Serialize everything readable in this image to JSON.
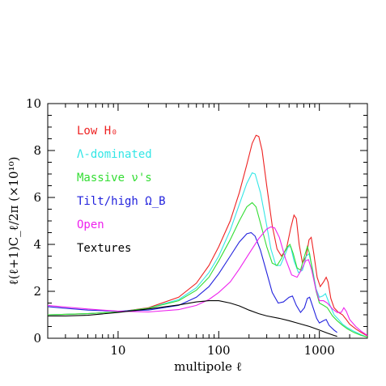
{
  "chart_data": {
    "type": "line",
    "xlabel": "multipole ℓ",
    "ylabel": "ℓ(ℓ+1)C_ℓ/2π (×10¹⁰)",
    "x_scale": "log",
    "xlim": [
      2,
      3000
    ],
    "ylim": [
      0,
      10
    ],
    "x_ticks": [
      10,
      100,
      1000
    ],
    "x_tick_labels": [
      "10",
      "100",
      "1000"
    ],
    "y_ticks": [
      0,
      2,
      4,
      6,
      8,
      10
    ],
    "y_tick_labels": [
      "0",
      "2",
      "4",
      "6",
      "8",
      "10"
    ],
    "grid": false,
    "legend_placement": "top-left",
    "series": [
      {
        "name": "Low H₀",
        "color": "#ee2222",
        "points": [
          [
            2,
            1.0
          ],
          [
            3,
            1.02
          ],
          [
            5,
            1.05
          ],
          [
            10,
            1.12
          ],
          [
            20,
            1.3
          ],
          [
            40,
            1.75
          ],
          [
            60,
            2.35
          ],
          [
            80,
            3.1
          ],
          [
            100,
            3.9
          ],
          [
            130,
            5.0
          ],
          [
            160,
            6.2
          ],
          [
            190,
            7.4
          ],
          [
            215,
            8.3
          ],
          [
            235,
            8.65
          ],
          [
            250,
            8.6
          ],
          [
            270,
            8.0
          ],
          [
            300,
            6.5
          ],
          [
            340,
            4.8
          ],
          [
            380,
            3.8
          ],
          [
            420,
            3.5
          ],
          [
            470,
            3.8
          ],
          [
            520,
            4.7
          ],
          [
            560,
            5.25
          ],
          [
            590,
            5.1
          ],
          [
            630,
            4.0
          ],
          [
            680,
            3.2
          ],
          [
            740,
            3.5
          ],
          [
            790,
            4.2
          ],
          [
            830,
            4.3
          ],
          [
            880,
            3.6
          ],
          [
            950,
            2.6
          ],
          [
            1020,
            2.2
          ],
          [
            1100,
            2.4
          ],
          [
            1170,
            2.6
          ],
          [
            1220,
            2.4
          ],
          [
            1300,
            1.7
          ],
          [
            1400,
            1.3
          ],
          [
            1550,
            1.1
          ],
          [
            1700,
            1.0
          ],
          [
            1850,
            0.8
          ],
          [
            2000,
            0.6
          ],
          [
            2300,
            0.4
          ],
          [
            2600,
            0.25
          ],
          [
            3000,
            0.1
          ]
        ]
      },
      {
        "name": "Λ-dominated",
        "color": "#33e6e6",
        "points": [
          [
            2,
            1.0
          ],
          [
            3,
            1.02
          ],
          [
            5,
            1.05
          ],
          [
            10,
            1.12
          ],
          [
            20,
            1.28
          ],
          [
            40,
            1.65
          ],
          [
            60,
            2.15
          ],
          [
            80,
            2.8
          ],
          [
            100,
            3.5
          ],
          [
            130,
            4.6
          ],
          [
            160,
            5.7
          ],
          [
            190,
            6.6
          ],
          [
            215,
            7.05
          ],
          [
            230,
            7.0
          ],
          [
            260,
            6.2
          ],
          [
            300,
            4.8
          ],
          [
            330,
            3.8
          ],
          [
            370,
            3.1
          ],
          [
            410,
            3.1
          ],
          [
            450,
            3.5
          ],
          [
            490,
            3.9
          ],
          [
            520,
            3.9
          ],
          [
            560,
            3.3
          ],
          [
            620,
            2.8
          ],
          [
            680,
            2.9
          ],
          [
            740,
            3.5
          ],
          [
            790,
            3.6
          ],
          [
            850,
            3.0
          ],
          [
            930,
            2.1
          ],
          [
            1000,
            1.75
          ],
          [
            1080,
            1.8
          ],
          [
            1150,
            1.9
          ],
          [
            1250,
            1.5
          ],
          [
            1400,
            1.0
          ],
          [
            1550,
            0.8
          ],
          [
            1700,
            0.6
          ],
          [
            1900,
            0.45
          ],
          [
            2200,
            0.3
          ],
          [
            2600,
            0.15
          ],
          [
            3000,
            0.05
          ]
        ]
      },
      {
        "name": "Massive ν's",
        "color": "#33dd33",
        "points": [
          [
            2,
            1.0
          ],
          [
            3,
            1.02
          ],
          [
            5,
            1.05
          ],
          [
            10,
            1.12
          ],
          [
            20,
            1.28
          ],
          [
            40,
            1.6
          ],
          [
            60,
            2.05
          ],
          [
            80,
            2.6
          ],
          [
            100,
            3.3
          ],
          [
            130,
            4.2
          ],
          [
            160,
            5.0
          ],
          [
            190,
            5.6
          ],
          [
            215,
            5.78
          ],
          [
            235,
            5.6
          ],
          [
            260,
            4.9
          ],
          [
            300,
            3.9
          ],
          [
            340,
            3.2
          ],
          [
            380,
            3.1
          ],
          [
            420,
            3.4
          ],
          [
            470,
            3.85
          ],
          [
            510,
            4.0
          ],
          [
            550,
            3.6
          ],
          [
            600,
            3.0
          ],
          [
            650,
            2.9
          ],
          [
            700,
            3.4
          ],
          [
            760,
            3.9
          ],
          [
            800,
            3.6
          ],
          [
            860,
            2.8
          ],
          [
            930,
            2.0
          ],
          [
            1000,
            1.5
          ],
          [
            1100,
            1.4
          ],
          [
            1200,
            1.3
          ],
          [
            1350,
            0.95
          ],
          [
            1500,
            0.75
          ],
          [
            1700,
            0.55
          ],
          [
            1900,
            0.4
          ],
          [
            2200,
            0.25
          ],
          [
            2600,
            0.12
          ],
          [
            3000,
            0.05
          ]
        ]
      },
      {
        "name": "Tilt/high Ω_B",
        "color": "#2222dd",
        "points": [
          [
            2,
            1.35
          ],
          [
            3,
            1.28
          ],
          [
            5,
            1.2
          ],
          [
            10,
            1.15
          ],
          [
            20,
            1.2
          ],
          [
            40,
            1.4
          ],
          [
            60,
            1.75
          ],
          [
            80,
            2.2
          ],
          [
            100,
            2.75
          ],
          [
            130,
            3.5
          ],
          [
            160,
            4.1
          ],
          [
            190,
            4.45
          ],
          [
            210,
            4.5
          ],
          [
            230,
            4.35
          ],
          [
            260,
            3.75
          ],
          [
            300,
            2.8
          ],
          [
            340,
            1.95
          ],
          [
            390,
            1.5
          ],
          [
            440,
            1.55
          ],
          [
            500,
            1.75
          ],
          [
            540,
            1.8
          ],
          [
            590,
            1.4
          ],
          [
            650,
            1.1
          ],
          [
            710,
            1.3
          ],
          [
            760,
            1.7
          ],
          [
            800,
            1.75
          ],
          [
            860,
            1.35
          ],
          [
            940,
            0.85
          ],
          [
            1000,
            0.65
          ],
          [
            1100,
            0.75
          ],
          [
            1170,
            0.8
          ],
          [
            1250,
            0.55
          ],
          [
            1400,
            0.35
          ],
          [
            1500,
            0.25
          ]
        ]
      },
      {
        "name": "Open",
        "color": "#ee22ee",
        "points": [
          [
            2,
            1.4
          ],
          [
            3,
            1.33
          ],
          [
            5,
            1.25
          ],
          [
            10,
            1.15
          ],
          [
            20,
            1.12
          ],
          [
            40,
            1.22
          ],
          [
            60,
            1.4
          ],
          [
            80,
            1.65
          ],
          [
            100,
            1.95
          ],
          [
            130,
            2.4
          ],
          [
            160,
            2.95
          ],
          [
            200,
            3.6
          ],
          [
            250,
            4.25
          ],
          [
            300,
            4.65
          ],
          [
            330,
            4.75
          ],
          [
            360,
            4.7
          ],
          [
            400,
            4.3
          ],
          [
            460,
            3.4
          ],
          [
            530,
            2.7
          ],
          [
            600,
            2.6
          ],
          [
            660,
            2.9
          ],
          [
            730,
            3.3
          ],
          [
            780,
            3.35
          ],
          [
            840,
            2.9
          ],
          [
            920,
            2.1
          ],
          [
            1000,
            1.6
          ],
          [
            1100,
            1.6
          ],
          [
            1200,
            1.5
          ],
          [
            1350,
            1.25
          ],
          [
            1500,
            1.1
          ],
          [
            1650,
            1.1
          ],
          [
            1750,
            1.3
          ],
          [
            1850,
            1.15
          ],
          [
            2000,
            0.8
          ],
          [
            2300,
            0.5
          ],
          [
            2600,
            0.3
          ],
          [
            3000,
            0.12
          ]
        ]
      },
      {
        "name": "Textures",
        "color": "#000000",
        "points": [
          [
            2,
            0.95
          ],
          [
            3,
            0.95
          ],
          [
            5,
            0.98
          ],
          [
            10,
            1.1
          ],
          [
            20,
            1.25
          ],
          [
            40,
            1.42
          ],
          [
            60,
            1.55
          ],
          [
            80,
            1.6
          ],
          [
            100,
            1.6
          ],
          [
            130,
            1.5
          ],
          [
            160,
            1.38
          ],
          [
            200,
            1.2
          ],
          [
            250,
            1.05
          ],
          [
            300,
            0.95
          ],
          [
            400,
            0.85
          ],
          [
            500,
            0.75
          ],
          [
            600,
            0.65
          ],
          [
            800,
            0.5
          ],
          [
            1000,
            0.35
          ],
          [
            1200,
            0.22
          ],
          [
            1400,
            0.12
          ],
          [
            1500,
            0.08
          ]
        ]
      }
    ]
  }
}
